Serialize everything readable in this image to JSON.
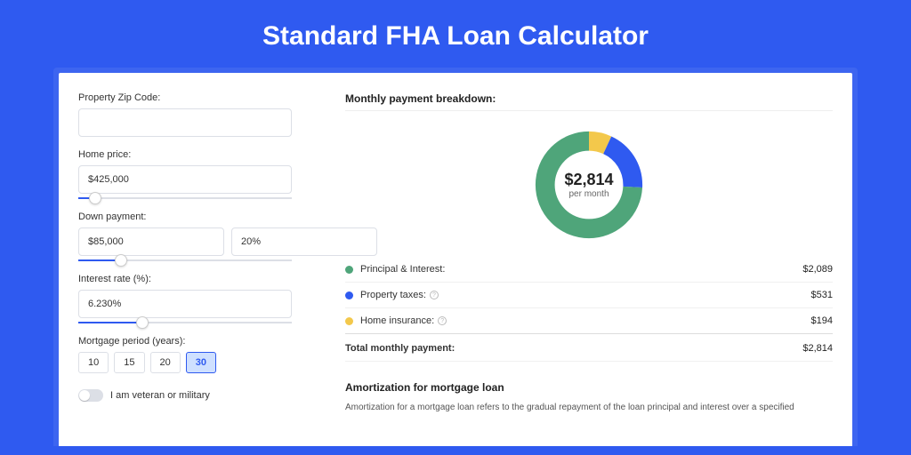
{
  "title": "Standard FHA Loan Calculator",
  "form": {
    "zip": {
      "label": "Property Zip Code:",
      "value": ""
    },
    "home_price": {
      "label": "Home price:",
      "value": "$425,000",
      "slider_pct": 8
    },
    "down_payment": {
      "label": "Down payment:",
      "amount": "$85,000",
      "pct": "20%",
      "slider_pct": 20
    },
    "interest_rate": {
      "label": "Interest rate (%):",
      "value": "6.230%",
      "slider_pct": 30
    },
    "mortgage_period": {
      "label": "Mortgage period (years):",
      "options": [
        "10",
        "15",
        "20",
        "30"
      ],
      "selected": "30"
    },
    "veteran": {
      "label": "I am veteran or military",
      "on": false
    }
  },
  "breakdown": {
    "title": "Monthly payment breakdown:",
    "donut": {
      "amount": "$2,814",
      "sub": "per month",
      "segments": [
        {
          "label": "Principal & Interest:",
          "value": "$2,089",
          "num": 2089,
          "color": "#4fa57a"
        },
        {
          "label": "Property taxes:",
          "value": "$531",
          "num": 531,
          "color": "#2f5af0",
          "info": true
        },
        {
          "label": "Home insurance:",
          "value": "$194",
          "num": 194,
          "color": "#f3c84b",
          "info": true
        }
      ],
      "total_label": "Total monthly payment:",
      "total_value": "$2,814",
      "total_num": 2814
    }
  },
  "amortization": {
    "title": "Amortization for mortgage loan",
    "text": "Amortization for a mortgage loan refers to the gradual repayment of the loan principal and interest over a specified"
  },
  "colors": {
    "bg": "#2f5af0",
    "shadow": "#3d65f0",
    "border": "#dcdfe6"
  }
}
